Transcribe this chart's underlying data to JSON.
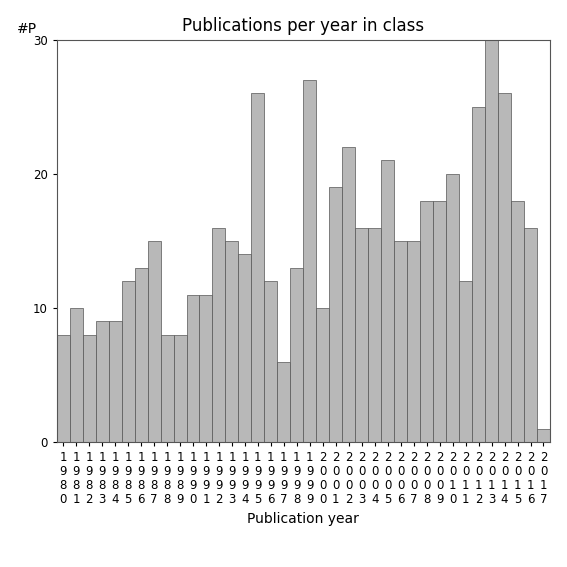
{
  "title": "Publications per year in class",
  "xlabel": "Publication year",
  "ylabel": "#P",
  "years": [
    "1980",
    "1981",
    "1982",
    "1983",
    "1984",
    "1985",
    "1986",
    "1987",
    "1988",
    "1989",
    "1990",
    "1991",
    "1992",
    "1993",
    "1994",
    "1995",
    "1996",
    "1997",
    "1998",
    "1999",
    "2000",
    "2001",
    "2002",
    "2003",
    "2004",
    "2005",
    "2006",
    "2007",
    "2008",
    "2009",
    "2010",
    "2011",
    "2012",
    "2013",
    "2014",
    "2015",
    "2016",
    "2017"
  ],
  "values": [
    8,
    10,
    8,
    9,
    9,
    12,
    13,
    15,
    8,
    8,
    11,
    11,
    16,
    15,
    14,
    26,
    12,
    6,
    13,
    27,
    10,
    19,
    22,
    16,
    16,
    21,
    15,
    15,
    18,
    18,
    20,
    12,
    25,
    30,
    26,
    18,
    16,
    1
  ],
  "bar_color": "#b8b8b8",
  "bar_edge_color": "#555555",
  "ylim": [
    0,
    30
  ],
  "yticks": [
    0,
    10,
    20,
    30
  ],
  "bg_color": "#ffffff",
  "title_fontsize": 12,
  "axis_label_fontsize": 10,
  "tick_fontsize": 8.5
}
